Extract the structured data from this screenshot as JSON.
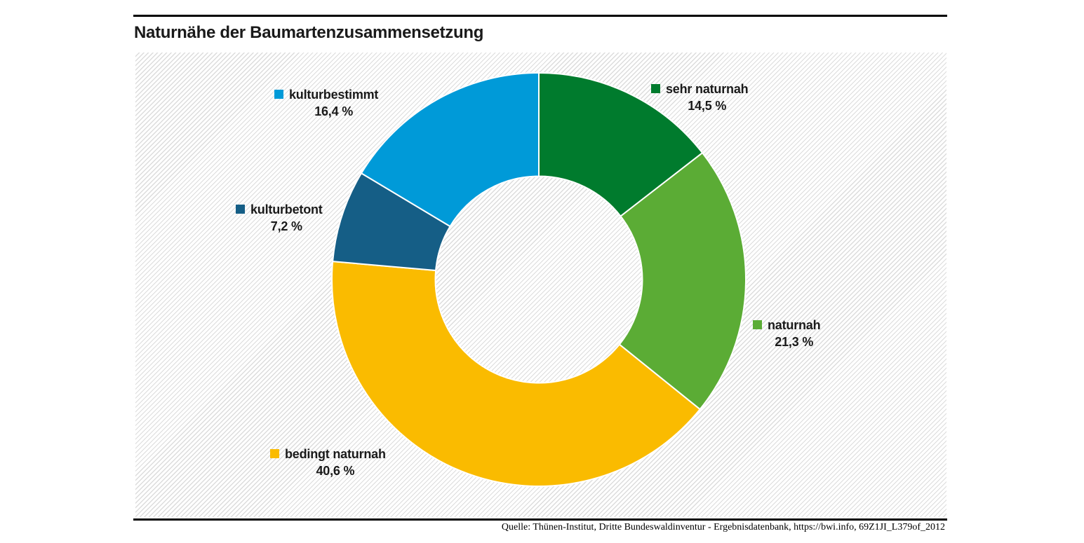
{
  "title": "Naturnähe der Baumartenzusammensetzung",
  "source": "Quelle: Thünen-Institut, Dritte Bundeswaldinventur - Ergebnisdatenbank, https://bwi.info, 69Z1JI_L379of_2012",
  "chart_data": {
    "type": "pie",
    "subtype": "donut",
    "title": "Naturnähe der Baumartenzusammensetzung",
    "categories": [
      "sehr naturnah",
      "naturnah",
      "bedingt naturnah",
      "kulturbetont",
      "kulturbestimmt"
    ],
    "values": [
      14.5,
      21.3,
      40.6,
      7.2,
      16.4
    ],
    "value_labels": [
      "14,5 %",
      "21,3 %",
      "40,6 %",
      "7,2 %",
      "16,4 %"
    ],
    "colors": [
      "#007B2D",
      "#5BAC35",
      "#FABB00",
      "#155E86",
      "#009AD8"
    ],
    "start_angle_deg": 0,
    "direction": "clockwise",
    "inner_radius_ratio": 0.5,
    "separator_color": "#ffffff",
    "background_pattern": "diagonal-hatch",
    "legend_position": "labels-around-donut"
  }
}
